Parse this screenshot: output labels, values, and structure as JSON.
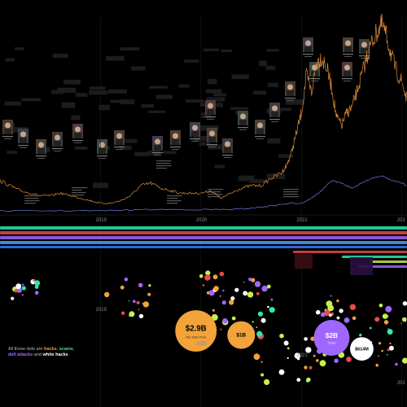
{
  "chart_data": [
    {
      "type": "line",
      "x_ticks": [
        "2019",
        "2020",
        "2021",
        "202"
      ],
      "series": [
        {
          "color": "#e8913a",
          "x": [
            2018.0,
            2018.1,
            2018.2,
            2018.3,
            2018.4,
            2018.5,
            2018.6,
            2018.7,
            2018.8,
            2018.9,
            2019.0,
            2019.1,
            2019.2,
            2019.3,
            2019.4,
            2019.5,
            2019.6,
            2019.7,
            2019.8,
            2019.9,
            2020.0,
            2020.1,
            2020.2,
            2020.3,
            2020.4,
            2020.5,
            2020.6,
            2020.7,
            2020.8,
            2020.85,
            2020.9,
            2020.95,
            2021.0,
            2021.05,
            2021.1,
            2021.15,
            2021.2,
            2021.25,
            2021.3,
            2021.35,
            2021.4,
            2021.45,
            2021.5,
            2021.55,
            2021.6,
            2021.65,
            2021.7,
            2021.75,
            2021.8,
            2021.85,
            2021.9,
            2021.95,
            2022.0,
            2022.05
          ],
          "y": [
            13,
            11,
            9,
            8,
            7,
            7,
            8,
            7,
            6,
            5,
            4,
            4,
            5,
            7,
            11,
            12,
            10,
            9,
            8,
            8,
            8,
            9,
            6,
            8,
            10,
            11,
            11,
            14,
            16,
            19,
            24,
            32,
            40,
            55,
            48,
            60,
            62,
            58,
            50,
            38,
            35,
            40,
            42,
            48,
            55,
            62,
            68,
            72,
            75,
            70,
            62,
            56,
            52,
            45
          ]
        },
        {
          "color": "#6f7df0",
          "x": [
            2018.0,
            2018.5,
            2019.0,
            2019.5,
            2020.0,
            2020.3,
            2020.5,
            2020.7,
            2020.9,
            2021.0,
            2021.1,
            2021.2,
            2021.3,
            2021.4,
            2021.5,
            2021.6,
            2021.7,
            2021.8,
            2021.9,
            2022.0,
            2022.05
          ],
          "y": [
            1,
            1,
            1,
            1.5,
            1.5,
            1.5,
            2,
            3,
            4,
            4,
            6,
            9,
            13,
            12,
            10,
            12,
            14,
            15,
            13,
            12,
            11
          ]
        }
      ]
    },
    {
      "type": "scatter",
      "x_ticks": [
        "2019",
        "2020",
        "2021",
        "202"
      ],
      "bubbles": [
        {
          "label": "$2.9B",
          "sublabel": "Plus Token Ponzi",
          "x": 2019.95,
          "y": 0.45,
          "size": 2.9,
          "color": "#f2a33a"
        },
        {
          "label": "$1B",
          "sublabel": "",
          "x": 2020.4,
          "y": 0.48,
          "size": 1.0,
          "color": "#f2a33a"
        },
        {
          "label": "$2B",
          "sublabel": "Thodex",
          "x": 2021.3,
          "y": 0.5,
          "size": 2.0,
          "color": "#a067ff"
        },
        {
          "label": "$614M",
          "sublabel": "",
          "x": 2021.6,
          "y": 0.58,
          "size": 0.614,
          "color": "#ffffff"
        }
      ]
    }
  ],
  "legend": {
    "line1": "All those dots are",
    "hacks": "hacks",
    "comma": ",",
    "scams": "scams",
    "defi": "defi attacks",
    "and": "and",
    "white": "white hacks"
  }
}
